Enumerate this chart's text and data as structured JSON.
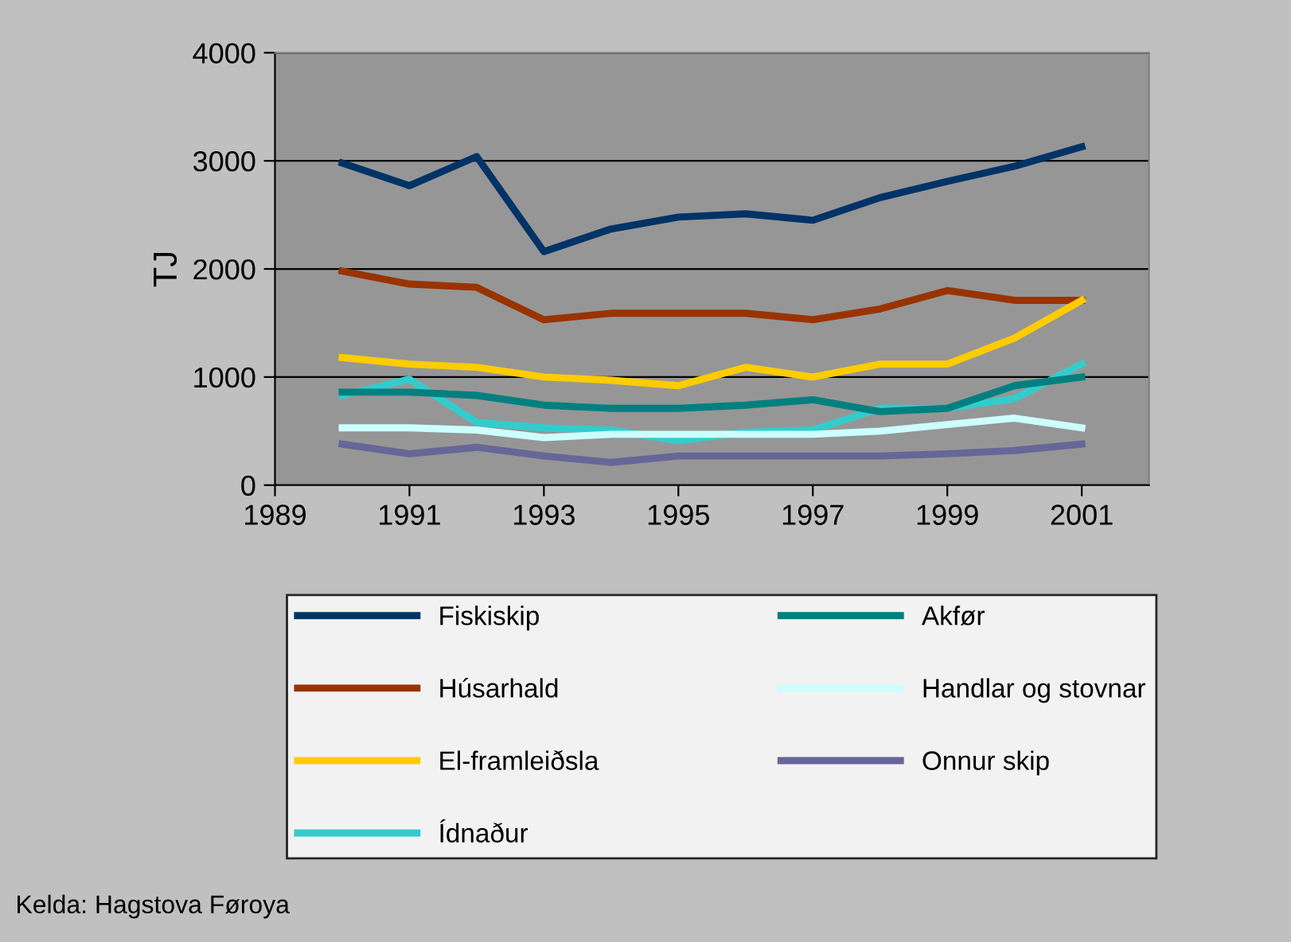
{
  "chart_data": {
    "type": "line",
    "ylabel": "TJ",
    "x": [
      1990,
      1991,
      1992,
      1993,
      1994,
      1995,
      1996,
      1997,
      1998,
      1999,
      2000,
      2001
    ],
    "xlim": [
      1989,
      2002
    ],
    "xticks": [
      1989,
      1991,
      1993,
      1995,
      1997,
      1999,
      2001
    ],
    "ylim": [
      0,
      4000
    ],
    "yticks": [
      0,
      1000,
      2000,
      3000,
      4000
    ],
    "grid": "y",
    "legend": "bottom",
    "marker": "none",
    "line_style": "solid",
    "series": [
      {
        "name": "Fiskiskip",
        "color": "#003366",
        "values": [
          2980,
          2770,
          3040,
          2160,
          2370,
          2480,
          2510,
          2450,
          2660,
          2810,
          2950,
          3130
        ]
      },
      {
        "name": "Húsarhald",
        "color": "#993300",
        "values": [
          1980,
          1860,
          1830,
          1530,
          1590,
          1590,
          1590,
          1530,
          1630,
          1800,
          1710,
          1710
        ]
      },
      {
        "name": "El-framleiðsla",
        "color": "#ffcc00",
        "values": [
          1180,
          1120,
          1090,
          1000,
          970,
          920,
          1090,
          1000,
          1120,
          1120,
          1360,
          1710
        ]
      },
      {
        "name": "Ídnaður",
        "color": "#33cccc",
        "values": [
          830,
          980,
          580,
          530,
          510,
          410,
          490,
          510,
          710,
          710,
          800,
          1120
        ]
      },
      {
        "name": "Akfør",
        "color": "#008080",
        "values": [
          860,
          860,
          830,
          740,
          710,
          710,
          740,
          790,
          680,
          710,
          920,
          1000
        ]
      },
      {
        "name": "Handlar og stovnar",
        "color": "#ccffff",
        "values": [
          530,
          530,
          510,
          440,
          470,
          470,
          470,
          470,
          500,
          560,
          620,
          530
        ]
      },
      {
        "name": "Onnur skip",
        "color": "#666699",
        "values": [
          380,
          290,
          350,
          270,
          210,
          270,
          270,
          270,
          270,
          290,
          320,
          380
        ]
      }
    ],
    "annotations": [
      "Kelda: Hagstova Føroya"
    ]
  }
}
